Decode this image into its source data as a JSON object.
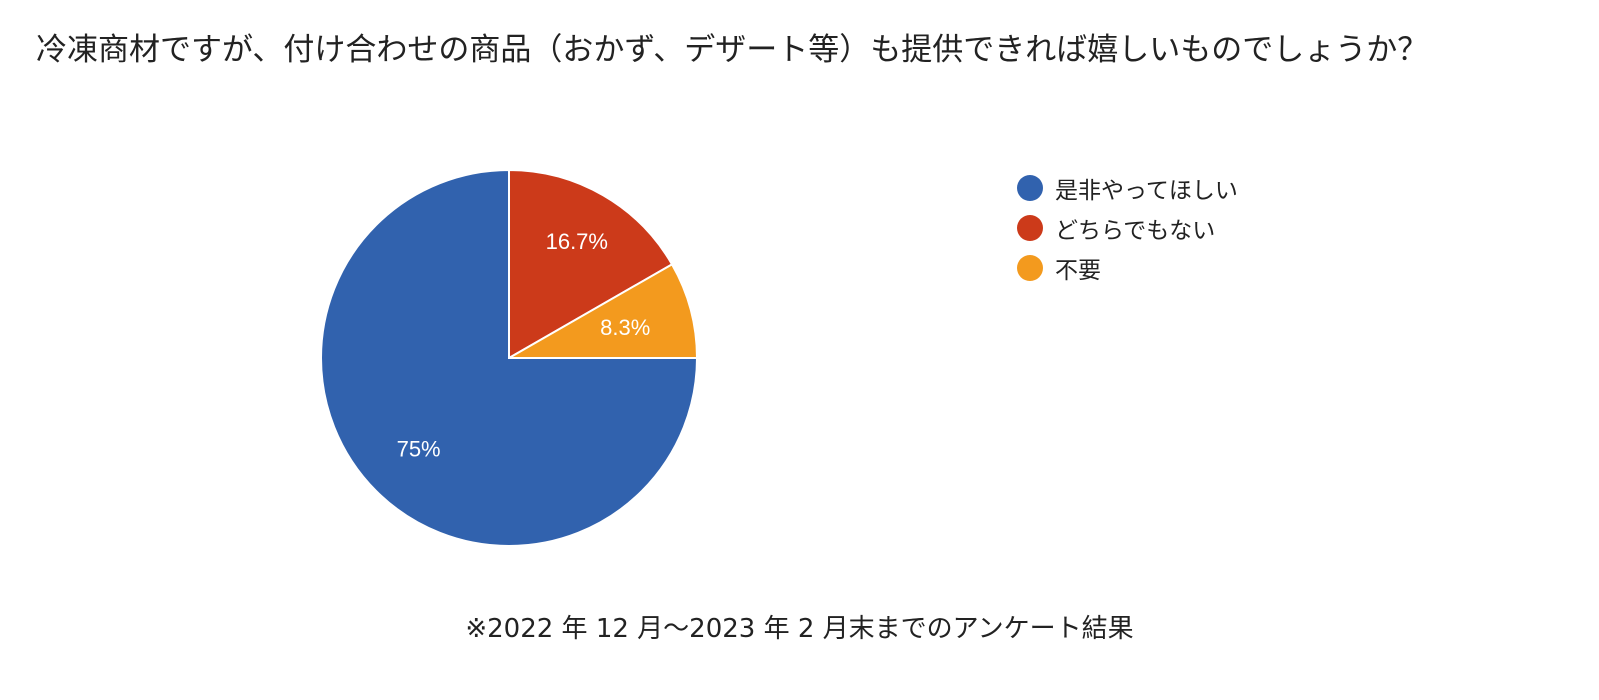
{
  "chart_data": {
    "type": "pie",
    "title": "冷凍商材ですが、付け合わせの商品（おかず、デザート等）も提供できれば嬉しいものでしょうか？",
    "categories": [
      "是非やってほしい",
      "どちらでもない",
      "不要"
    ],
    "values": [
      75,
      16.7,
      8.3
    ],
    "data_labels": [
      "75%",
      "16.7%",
      "8.3%"
    ],
    "colors": [
      "#3162ae",
      "#cc3a1a",
      "#f39a1e"
    ],
    "legend_position": "right",
    "footnote": "※2022 年 12 月～2023 年 2 月末までのアンケート結果"
  }
}
